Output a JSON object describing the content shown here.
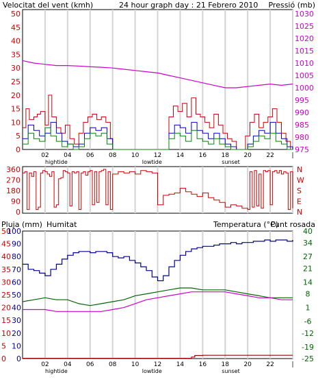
{
  "header": {
    "wind_title": "Velocitat del vent (kmh)",
    "graph_title": "24 hour graph day : 21 Febrero 2010",
    "pressure_title": "Pressió (mb)",
    "rain_title": "Pluja (mm)",
    "humidity_title": "Humitat",
    "temp_title": "Temperatura (°C)",
    "dew_title": "Punt rosada"
  },
  "colors": {
    "wind": "#cc0000",
    "wind_avg": "#0000cc",
    "wind_green": "#008800",
    "pressure": "#cc00cc",
    "direction": "#cc0000",
    "humidity": "#000099",
    "temperature": "#006600",
    "dew": "#cc00cc",
    "rain": "#990000",
    "grid": "#d4d4d4"
  },
  "chart_data": [
    {
      "type": "line",
      "name": "wind-pressure",
      "x_ticks": [
        "02",
        "04",
        "06",
        "08",
        "10",
        "12",
        "14",
        "16",
        "18",
        "20",
        "22",
        "|"
      ],
      "x_annotations": [
        {
          "label": "hightide",
          "x": 3
        },
        {
          "label": "lowtide",
          "x": 11.5
        },
        {
          "label": "sunset",
          "x": 18.5
        }
      ],
      "xlim": [
        0,
        24
      ],
      "y_left": {
        "label": "Velocitat del vent (kmh)",
        "range": [
          0,
          50
        ],
        "ticks": [
          0,
          5,
          10,
          15,
          20,
          25,
          30,
          35,
          40,
          45,
          50
        ]
      },
      "y_right": {
        "label": "Pressió (mb)",
        "range": [
          975,
          1030
        ],
        "ticks": [
          975,
          980,
          985,
          990,
          995,
          1000,
          1005,
          1010,
          1015,
          1020,
          1025,
          1030
        ]
      },
      "series": [
        {
          "name": "Pressió (mb)",
          "axis": "right",
          "x": [
            0,
            1,
            2,
            3,
            4,
            5,
            6,
            7,
            8,
            9,
            10,
            11,
            12,
            13,
            14,
            15,
            16,
            17,
            18,
            19,
            20,
            21,
            22,
            23,
            24
          ],
          "values": [
            1011,
            1010,
            1009.5,
            1009,
            1009,
            1008.8,
            1008.5,
            1008.3,
            1008,
            1007.5,
            1007,
            1006.5,
            1006,
            1005,
            1004,
            1003,
            1002,
            1001,
            1000,
            1000,
            1000.5,
            1001,
            1001.5,
            1001,
            1001.5
          ]
        },
        {
          "name": "gust",
          "axis": "left",
          "x": [
            0,
            0.3,
            0.6,
            1,
            1.3,
            1.6,
            2,
            2.3,
            2.6,
            3,
            3.4,
            3.8,
            4.2,
            4.6,
            5,
            5.4,
            5.8,
            6.2,
            6.6,
            7,
            7.4,
            7.8,
            8,
            12.6,
            13,
            13.4,
            13.8,
            14.2,
            14.6,
            15,
            15.4,
            15.8,
            16.2,
            16.6,
            17,
            17.4,
            17.8,
            18.2,
            18.6,
            19,
            19.4,
            19.8,
            20.2,
            20.6,
            21,
            21.4,
            21.8,
            22.2,
            22.6,
            23,
            23.4,
            23.8
          ],
          "values": [
            8,
            15,
            11,
            12,
            13,
            14,
            9,
            20,
            12,
            8,
            6,
            9,
            4,
            2,
            6,
            10,
            12,
            13,
            11,
            12,
            10,
            4,
            0,
            0,
            12,
            16,
            14,
            17,
            12,
            19,
            13,
            12,
            10,
            8,
            13,
            9,
            6,
            4,
            3,
            0,
            0,
            5,
            10,
            13,
            8,
            10,
            12,
            15,
            10,
            6,
            3,
            0
          ]
        },
        {
          "name": "average",
          "axis": "left",
          "x": [
            0,
            0.5,
            1,
            1.5,
            2,
            2.5,
            3,
            3.5,
            4,
            4.5,
            5,
            5.5,
            6,
            6.5,
            7,
            7.5,
            8,
            12.6,
            13,
            13.5,
            14,
            14.5,
            15,
            15.5,
            16,
            16.5,
            17,
            17.5,
            18,
            18.5,
            19,
            19.5,
            20,
            20.5,
            21,
            21.5,
            22,
            22.5,
            23,
            23.5,
            24
          ],
          "values": [
            4,
            9,
            7,
            5,
            6,
            10,
            6,
            3,
            2,
            1,
            2,
            6,
            8,
            7,
            8,
            4,
            0,
            0,
            6,
            9,
            8,
            6,
            10,
            7,
            6,
            4,
            6,
            4,
            2,
            1,
            0,
            0,
            2,
            5,
            7,
            6,
            10,
            6,
            4,
            1,
            0
          ]
        },
        {
          "name": "green",
          "axis": "left",
          "x": [
            0,
            0.5,
            1,
            1.5,
            2,
            2.5,
            3,
            3.5,
            4,
            4.5,
            5,
            5.5,
            6,
            6.5,
            7,
            7.5,
            8,
            12.6,
            13,
            13.5,
            14,
            14.5,
            15,
            15.5,
            16,
            16.5,
            17,
            17.5,
            18,
            18.5,
            19,
            19.5,
            20,
            20.5,
            21,
            21.5,
            22,
            22.5,
            23,
            23.5,
            24
          ],
          "values": [
            2,
            6,
            4,
            3,
            8,
            5,
            3,
            1,
            2,
            0,
            1,
            4,
            6,
            5,
            6,
            2,
            0,
            0,
            4,
            6,
            5,
            3,
            7,
            4,
            3,
            2,
            4,
            2,
            1,
            0,
            0,
            0,
            1,
            3,
            5,
            4,
            6,
            3,
            2,
            0,
            0
          ]
        }
      ]
    },
    {
      "type": "line",
      "name": "wind-direction",
      "xlim": [
        0,
        24
      ],
      "y_left": {
        "range": [
          0,
          360
        ],
        "ticks": [
          0,
          90,
          180,
          270,
          360
        ]
      },
      "y_right": {
        "ticks": [
          "N",
          "W",
          "S",
          "E",
          "N"
        ]
      },
      "series": [
        {
          "name": "direction",
          "x": [
            0,
            0.2,
            0.4,
            0.6,
            0.8,
            1,
            1.2,
            1.4,
            1.6,
            1.8,
            2,
            2.2,
            2.4,
            2.6,
            2.8,
            3,
            3.2,
            3.4,
            3.6,
            3.8,
            4,
            4.2,
            4.4,
            4.6,
            4.8,
            5,
            5.2,
            5.4,
            5.6,
            5.8,
            6,
            6.2,
            6.4,
            6.6,
            6.8,
            7,
            7.2,
            7.4,
            7.6,
            7.8,
            8,
            8.5,
            9,
            9.5,
            10,
            10.5,
            11,
            11.5,
            12,
            12.5,
            13,
            13.5,
            14,
            14.5,
            15,
            15.5,
            16,
            16.5,
            17,
            17.5,
            18,
            18.5,
            19,
            19.5,
            20,
            20.2,
            20.4,
            20.6,
            20.8,
            21,
            21.2,
            21.4,
            21.6,
            21.8,
            22,
            22.2,
            22.4,
            22.6,
            22.8,
            23,
            23.2,
            23.4,
            23.6,
            23.8,
            24
          ],
          "values": [
            330,
            340,
            20,
            330,
            300,
            340,
            20,
            40,
            330,
            350,
            340,
            320,
            300,
            340,
            40,
            60,
            280,
            290,
            350,
            340,
            330,
            50,
            340,
            330,
            340,
            20,
            330,
            340,
            310,
            340,
            350,
            60,
            340,
            80,
            340,
            350,
            360,
            60,
            340,
            20,
            320,
            340,
            330,
            340,
            320,
            350,
            340,
            330,
            60,
            140,
            150,
            160,
            200,
            170,
            150,
            130,
            160,
            120,
            100,
            80,
            40,
            60,
            50,
            30,
            20,
            340,
            40,
            350,
            50,
            320,
            30,
            350,
            340,
            350,
            60,
            340,
            350,
            330,
            350,
            320,
            340,
            330,
            20,
            340,
            30
          ]
        }
      ]
    },
    {
      "type": "line",
      "name": "humidity-temperature",
      "x_ticks": [
        "02",
        "04",
        "06",
        "08",
        "10",
        "12",
        "14",
        "16",
        "18",
        "20",
        "22",
        "|"
      ],
      "x_annotations": [
        {
          "label": "hightide",
          "x": 3
        },
        {
          "label": "lowtide",
          "x": 11.5
        },
        {
          "label": "sunset",
          "x": 18.5
        }
      ],
      "xlim": [
        0,
        24
      ],
      "y_rain": {
        "label": "Pluja (mm)",
        "ticks": [
          0,
          5,
          10,
          15,
          20,
          25,
          30,
          35,
          40,
          45,
          50
        ]
      },
      "y_humidity": {
        "label": "Humitat",
        "range": [
          0,
          100
        ],
        "ticks": [
          0,
          10,
          20,
          30,
          40,
          50,
          60,
          70,
          80,
          90,
          100
        ]
      },
      "y_temp": {
        "label": "Temperatura (°C)",
        "range": [
          -25,
          40
        ],
        "ticks": [
          -25,
          -19,
          -12,
          -6,
          1,
          8,
          14,
          21,
          27,
          34,
          40
        ]
      },
      "series": [
        {
          "name": "Humitat",
          "axis": "humidity",
          "x": [
            0,
            0.5,
            1,
            1.5,
            2,
            2.5,
            3,
            3.5,
            4,
            4.5,
            5,
            5.5,
            6,
            6.5,
            7,
            7.5,
            8,
            8.5,
            9,
            9.5,
            10,
            10.5,
            11,
            11.5,
            12,
            12.5,
            13,
            13.5,
            14,
            14.5,
            15,
            15.5,
            16,
            16.5,
            17,
            17.5,
            18,
            18.5,
            19,
            19.5,
            20,
            20.5,
            21,
            21.5,
            22,
            22.5,
            23,
            23.5,
            24
          ],
          "values": [
            74,
            70,
            69,
            67,
            65,
            70,
            74,
            78,
            81,
            83,
            84,
            84,
            83,
            84,
            84,
            83,
            80,
            79,
            80,
            77,
            75,
            72,
            69,
            64,
            61,
            65,
            72,
            77,
            81,
            84,
            86,
            87,
            88,
            88,
            89,
            90,
            90,
            91,
            90,
            91,
            91,
            92,
            92,
            93,
            92,
            93,
            93,
            92,
            93
          ]
        },
        {
          "name": "Temperatura (°C)",
          "axis": "temp",
          "x": [
            0,
            1,
            2,
            3,
            4,
            5,
            6,
            7,
            8,
            9,
            10,
            11,
            12,
            13,
            14,
            15,
            16,
            17,
            18,
            19,
            20,
            21,
            22,
            23,
            24
          ],
          "values": [
            4,
            5,
            6,
            5,
            5,
            3,
            2,
            3,
            4,
            5,
            7,
            8,
            9,
            10,
            11,
            11,
            10,
            10,
            10,
            9,
            8,
            7,
            6,
            6,
            6
          ]
        },
        {
          "name": "Punt rosada",
          "axis": "temp",
          "x": [
            0,
            1,
            2,
            3,
            4,
            5,
            6,
            7,
            8,
            9,
            10,
            11,
            12,
            13,
            14,
            15,
            16,
            17,
            18,
            19,
            20,
            21,
            22,
            23,
            24
          ],
          "values": [
            0,
            0,
            0,
            -1,
            -1,
            -1,
            -1,
            -1,
            0,
            1,
            3,
            5,
            6,
            7,
            8,
            9,
            9,
            9,
            9,
            8,
            7,
            6,
            6,
            5,
            5
          ]
        },
        {
          "name": "Pluja (mm)",
          "axis": "rain",
          "x": [
            0,
            1,
            2,
            3,
            4,
            5,
            6,
            7,
            8,
            9,
            10,
            11,
            12,
            13,
            14,
            15,
            15.3,
            16,
            17,
            18,
            19,
            20,
            21,
            22,
            23,
            24
          ],
          "values": [
            0.1,
            0.1,
            0.1,
            0.1,
            0.1,
            0.1,
            0.1,
            0.1,
            0.1,
            0.1,
            0.1,
            0.1,
            0.1,
            0.1,
            0.1,
            0.6,
            1.2,
            1.3,
            1.3,
            1.3,
            1.3,
            1.3,
            1.3,
            1.3,
            1.3,
            1.3
          ]
        }
      ]
    }
  ]
}
